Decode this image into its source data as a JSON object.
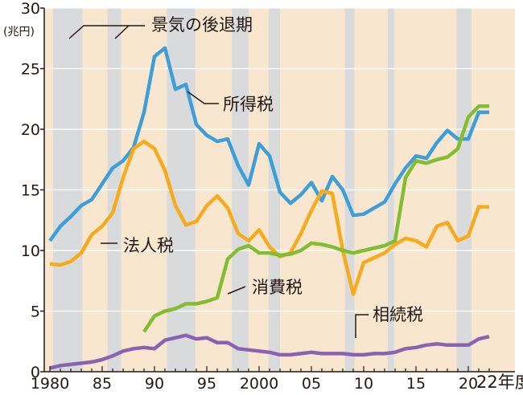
{
  "chart_data": {
    "type": "line",
    "title": "",
    "xlabel": "",
    "ylabel": "",
    "unit_label": "(兆円)",
    "x_suffix_label": "22年度",
    "xlim": [
      1980,
      2022
    ],
    "ylim": [
      0,
      30
    ],
    "y_ticks": [
      0,
      5,
      10,
      15,
      20,
      25,
      30
    ],
    "x_ticks": [
      {
        "value": 1980,
        "label": "1980"
      },
      {
        "value": 1985,
        "label": "85"
      },
      {
        "value": 1990,
        "label": "90"
      },
      {
        "value": 1995,
        "label": "95"
      },
      {
        "value": 2000,
        "label": "2000"
      },
      {
        "value": 2005,
        "label": "05"
      },
      {
        "value": 2010,
        "label": "10"
      },
      {
        "value": 2015,
        "label": "15"
      },
      {
        "value": 2020,
        "label": "20"
      }
    ],
    "legend": {
      "recession": "景気の後退期"
    },
    "background_color": "#f8e6cf",
    "recession_color": "#d9dadc",
    "recessions": [
      [
        1980.3,
        1983.1
      ],
      [
        1985.5,
        1986.8
      ],
      [
        1991.2,
        1993.9
      ],
      [
        1997.4,
        1999.0
      ],
      [
        2000.9,
        2002.0
      ],
      [
        2008.2,
        2009.1
      ],
      [
        2012.3,
        2012.9
      ],
      [
        2018.9,
        2020.3
      ]
    ],
    "series": [
      {
        "name": "所得税",
        "color": "#3e9fd8",
        "x": [
          1980,
          1981,
          1982,
          1983,
          1984,
          1985,
          1986,
          1987,
          1988,
          1989,
          1990,
          1991,
          1992,
          1993,
          1994,
          1995,
          1996,
          1997,
          1998,
          1999,
          2000,
          2001,
          2002,
          2003,
          2004,
          2005,
          2006,
          2007,
          2008,
          2009,
          2010,
          2011,
          2012,
          2013,
          2014,
          2015,
          2016,
          2017,
          2018,
          2019,
          2020,
          2021,
          2022
        ],
        "values": [
          10.8,
          12.0,
          12.8,
          13.7,
          14.2,
          15.5,
          16.8,
          17.4,
          18.5,
          21.4,
          26.0,
          26.7,
          23.3,
          23.7,
          20.4,
          19.5,
          19.0,
          19.2,
          17.0,
          15.4,
          18.8,
          17.8,
          14.8,
          13.9,
          14.6,
          15.6,
          14.1,
          16.1,
          15.0,
          12.9,
          13.0,
          13.5,
          14.0,
          15.5,
          16.8,
          17.8,
          17.6,
          18.9,
          19.9,
          19.2,
          19.2,
          21.4,
          21.4
        ]
      },
      {
        "name": "法人税",
        "color": "#f6ab1c",
        "x": [
          1980,
          1981,
          1982,
          1983,
          1984,
          1985,
          1986,
          1987,
          1988,
          1989,
          1990,
          1991,
          1992,
          1993,
          1994,
          1995,
          1996,
          1997,
          1998,
          1999,
          2000,
          2001,
          2002,
          2003,
          2004,
          2005,
          2006,
          2007,
          2008,
          2009,
          2010,
          2011,
          2012,
          2013,
          2014,
          2015,
          2016,
          2017,
          2018,
          2019,
          2020,
          2021,
          2022
        ],
        "values": [
          8.9,
          8.8,
          9.1,
          9.8,
          11.3,
          12.0,
          13.1,
          16.0,
          18.4,
          19.0,
          18.4,
          16.6,
          13.7,
          12.1,
          12.4,
          13.7,
          14.5,
          13.5,
          11.4,
          10.8,
          11.7,
          10.3,
          9.5,
          9.8,
          11.4,
          13.3,
          14.9,
          14.7,
          10.0,
          6.4,
          9.0,
          9.4,
          9.8,
          10.5,
          11.0,
          10.8,
          10.3,
          12.0,
          12.3,
          10.8,
          11.2,
          13.6,
          13.6
        ]
      },
      {
        "name": "消費税",
        "color": "#82bd32",
        "x": [
          1989,
          1990,
          1991,
          1992,
          1993,
          1994,
          1995,
          1996,
          1997,
          1998,
          1999,
          2000,
          2001,
          2002,
          2003,
          2004,
          2005,
          2006,
          2007,
          2008,
          2009,
          2010,
          2011,
          2012,
          2013,
          2014,
          2015,
          2016,
          2017,
          2018,
          2019,
          2020,
          2021,
          2022
        ],
        "values": [
          3.3,
          4.6,
          5.0,
          5.2,
          5.6,
          5.6,
          5.8,
          6.1,
          9.3,
          10.1,
          10.4,
          9.8,
          9.8,
          9.6,
          9.7,
          10.0,
          10.6,
          10.5,
          10.3,
          10.0,
          9.8,
          10.0,
          10.2,
          10.4,
          10.8,
          16.0,
          17.4,
          17.2,
          17.5,
          17.7,
          18.4,
          21.0,
          21.9,
          21.9
        ]
      },
      {
        "name": "相続税",
        "color": "#8a62b0",
        "x": [
          1980,
          1981,
          1982,
          1983,
          1984,
          1985,
          1986,
          1987,
          1988,
          1989,
          1990,
          1991,
          1992,
          1993,
          1994,
          1995,
          1996,
          1997,
          1998,
          1999,
          2000,
          2001,
          2002,
          2003,
          2004,
          2005,
          2006,
          2007,
          2008,
          2009,
          2010,
          2011,
          2012,
          2013,
          2014,
          2015,
          2016,
          2017,
          2018,
          2019,
          2020,
          2021,
          2022
        ],
        "values": [
          0.3,
          0.5,
          0.6,
          0.7,
          0.8,
          1.0,
          1.3,
          1.7,
          1.9,
          2.0,
          1.9,
          2.6,
          2.8,
          3.0,
          2.7,
          2.8,
          2.4,
          2.4,
          1.9,
          1.8,
          1.7,
          1.6,
          1.4,
          1.4,
          1.5,
          1.6,
          1.5,
          1.5,
          1.5,
          1.4,
          1.4,
          1.5,
          1.5,
          1.6,
          1.9,
          2.0,
          2.2,
          2.3,
          2.2,
          2.2,
          2.2,
          2.7,
          2.9
        ]
      }
    ]
  }
}
